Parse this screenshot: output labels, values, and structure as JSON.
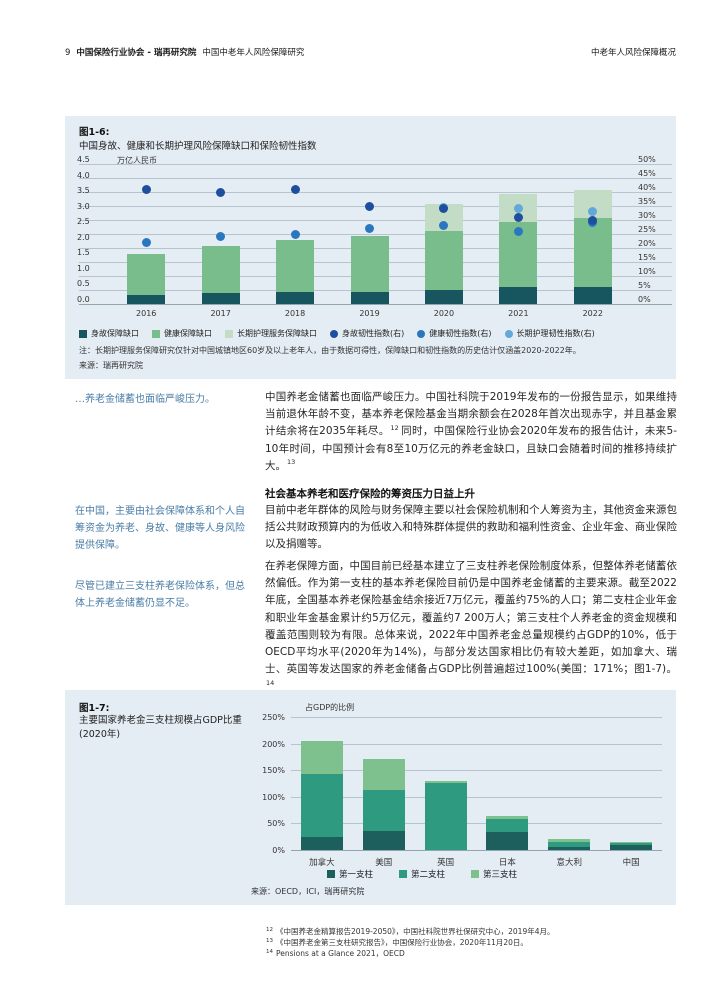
{
  "header": {
    "page_number": "9",
    "brand": "中国保险行业协会 - 瑞再研究院",
    "doc_title": "中国中老年人风险保障研究",
    "section": "中老年人风险保障概况"
  },
  "figure6": {
    "label": "图1-6:",
    "title": "中国身故、健康和长期护理风险保障缺口和保险韧性指数",
    "axis_unit": "万亿人民币",
    "note": "注：长期护理服务保障研究仅针对中国城镇地区60岁及以上老年人，由于数据可得性，保障缺口和韧性指数的历史估计仅涵盖2020-2022年。",
    "source": "来源：瑞再研究院"
  },
  "figure7": {
    "label": "图1-7:",
    "title": "主要国家养老金三支柱规模占GDP比重(2020年)",
    "axis_label": "占GDP的比例",
    "source": "来源：OECD，ICI，瑞再研究院"
  },
  "sidenotes": [
    "…养老金储蓄也面临严峻压力。",
    "在中国，主要由社会保障体系和个人自筹资金为养老、身故、健康等人身风险提供保障。",
    "尽管已建立三支柱养老保险体系，但总体上养老金储蓄仍显不足。"
  ],
  "body": {
    "para1": "中国养老金储蓄也面临严峻压力。中国社科院于2019年发布的一份报告显示，如果维持当前退休年龄不变，基本养老保险基金当期余额会在2028年首次出现赤字，并且基金累计结余将在2035年耗尽。",
    "para1_fn": "12",
    "para1b": "同时，中国保险行业协会2020年发布的报告估计，未来5-10年时间，中国预计会有8至10万亿元的养老金缺口，且缺口会随着时间的推移持续扩大。",
    "para1b_fn": "13",
    "heading": "社会基本养老和医疗保险的筹资压力日益上升",
    "para2": "目前中老年群体的风险与财务保障主要以社会保险机制和个人筹资为主，其他资金来源包括公共财政预算内的为低收入和特殊群体提供的救助和福利性资金、企业年金、商业保险以及捐赠等。",
    "para3": "在养老保障方面，中国目前已经基本建立了三支柱养老保险制度体系，但整体养老储蓄依然偏低。作为第一支柱的基本养老保险目前仍是中国养老金储蓄的主要来源。截至2022年底，全国基本养老保险基金结余接近7万亿元，覆盖约75%的人口；第二支柱企业年金和职业年金基金累计约5万亿元，覆盖约7 200万人；第三支柱个人养老金的资金规模和覆盖范围则较为有限。总体来说，2022年中国养老金总量规模约占GDP的10%，低于OECD平均水平(2020年为14%)，与部分发达国家相比仍有较大差距，如加拿大、瑞士、英国等发达国家的养老金储备占GDP比例普遍超过100%(美国：171%；图1-7)。",
    "para3_fn": "14"
  },
  "footnotes": [
    {
      "num": "12",
      "text": "《中国养老金精算报告2019-2050》，中国社科院世界社保研究中心，2019年4月。"
    },
    {
      "num": "13",
      "text": "《中国养老金第三支柱研究报告》，中国保险行业协会，2020年11月20日。"
    },
    {
      "num": "14",
      "text": "Pensions at a Glance 2021，OECD"
    }
  ],
  "colors": {
    "panel_background": "#e4edf4",
    "sidenote_blue": "#4a7da7",
    "gridline": "#b7c4cf"
  },
  "chart_data": [
    {
      "type": "bar",
      "title": "中国身故、健康和长期护理风险保障缺口和保险韧性指数",
      "unit": "万亿人民币",
      "categories": [
        "2016",
        "2017",
        "2018",
        "2019",
        "2020",
        "2021",
        "2022"
      ],
      "left_axis": {
        "max": 4.5,
        "ticks": [
          "4.5",
          "4.0",
          "3.5",
          "3.0",
          "2.5",
          "2.0",
          "1.5",
          "1.0",
          "0.5",
          "0.0"
        ]
      },
      "right_axis": {
        "max": 50,
        "ticks": [
          "50%",
          "45%",
          "40%",
          "35%",
          "30%",
          "25%",
          "20%",
          "15%",
          "10%",
          "5%",
          "0%"
        ]
      },
      "bar_series": [
        {
          "name": "身故保障缺口",
          "color": "#17565e",
          "values": [
            0.3,
            0.35,
            0.4,
            0.4,
            0.45,
            0.55,
            0.55
          ]
        },
        {
          "name": "健康保障缺口",
          "color": "#79bd8c",
          "values": [
            1.3,
            1.5,
            1.65,
            1.8,
            1.9,
            2.1,
            2.2
          ]
        },
        {
          "name": "长期护理服务保障缺口",
          "color": "#c3dcc6",
          "values": [
            0,
            0,
            0,
            0,
            0.85,
            0.9,
            0.9
          ]
        }
      ],
      "dot_series": [
        {
          "name": "身故韧性指数(右)",
          "color": "#1e4f9e",
          "values": [
            41,
            40,
            41,
            35,
            34,
            31,
            30
          ]
        },
        {
          "name": "健康韧性指数(右)",
          "color": "#2a77c0",
          "values": [
            22,
            24,
            25,
            27,
            28,
            26,
            29
          ]
        },
        {
          "name": "长期护理韧性指数(右)",
          "color": "#62a8d8",
          "values": [
            null,
            null,
            null,
            null,
            34.5,
            34,
            33
          ]
        }
      ],
      "note": "注：长期护理服务保障研究仅针对中国城镇地区60岁及以上老年人，由于数据可得性，保障缺口和韧性指数的历史估计仅涵盖2020-2022年。",
      "source": "来源：瑞再研究院",
      "legend_position": "bottom",
      "grid": true
    },
    {
      "type": "bar",
      "title": "主要国家养老金三支柱规模占GDP比重(2020年)",
      "ylabel": "占GDP的比例",
      "ylim": [
        0,
        250
      ],
      "yticks": [
        "250%",
        "200%",
        "150%",
        "100%",
        "50%",
        "0%"
      ],
      "categories": [
        "加拿大",
        "美国",
        "英国",
        "日本",
        "意大利",
        "中国"
      ],
      "series": [
        {
          "name": "第一支柱",
          "color": "#1d5f5c",
          "values": [
            25,
            35,
            0,
            33,
            5,
            10
          ]
        },
        {
          "name": "第二支柱",
          "color": "#2e9b80",
          "values": [
            117,
            77,
            126,
            26,
            10,
            5
          ]
        },
        {
          "name": "第三支柱",
          "color": "#7fc08f",
          "values": [
            63,
            60,
            3,
            5,
            5,
            1
          ]
        }
      ],
      "totals": [
        205,
        172,
        129,
        64,
        20,
        16
      ],
      "source": "来源：OECD，ICI，瑞再研究院",
      "legend_position": "bottom",
      "grid": true
    }
  ]
}
